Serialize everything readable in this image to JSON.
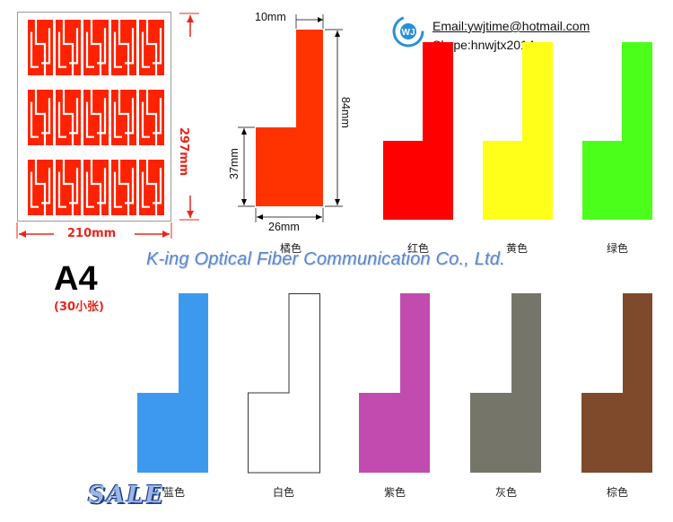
{
  "sheet": {
    "width_label": "210mm",
    "height_label": "297mm",
    "format_label": "A4",
    "format_sub": "(30小张)"
  },
  "dimensions": {
    "top_width": "10mm",
    "total_height": "84mm",
    "base_height": "37mm",
    "base_width": "26mm"
  },
  "contact": {
    "logo_text": "WJ",
    "email": "Email:ywjtime@hotmail.com",
    "skype": "Skype:hnwjtx2014"
  },
  "company": "K-ing Optical Fiber Communication Co., Ltd.",
  "badge": "SALE",
  "colors": {
    "orange": "#ff3300",
    "red": "#ff0000",
    "yellow": "#ffff1a",
    "green": "#4cff1a",
    "blue": "#3d99ee",
    "white": "#ffffff",
    "purple": "#c24bb0",
    "gray": "#757569",
    "brown": "#7e4a2b",
    "sheet_red": "#ff2200"
  },
  "labels": [
    {
      "name": "橘色",
      "color": "#ff3300"
    },
    {
      "name": "红色",
      "color": "#ff0000"
    },
    {
      "name": "黄色",
      "color": "#ffff1a"
    },
    {
      "name": "绿色",
      "color": "#4cff1a"
    },
    {
      "name": "蓝色",
      "color": "#3d99ee"
    },
    {
      "name": "白色",
      "color": "#ffffff"
    },
    {
      "name": "紫色",
      "color": "#c24bb0"
    },
    {
      "name": "灰色",
      "color": "#757569"
    },
    {
      "name": "棕色",
      "color": "#7e4a2b"
    }
  ]
}
